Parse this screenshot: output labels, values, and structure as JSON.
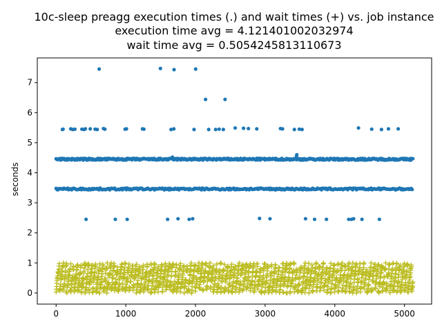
{
  "chart_data": {
    "type": "scatter",
    "title_lines": [
      "10c-sleep preagg execution times (.) and wait times (+) vs. job instance",
      "execution time avg = 4.121401002032974",
      "wait time avg = 0.5054245813110673"
    ],
    "xlabel": "",
    "ylabel": "seconds",
    "xlim": [
      -270,
      5390
    ],
    "ylim": [
      -0.37,
      7.82
    ],
    "x_ticks": [
      0,
      1000,
      2000,
      3000,
      4000,
      5000
    ],
    "y_ticks": [
      0,
      1,
      2,
      3,
      4,
      5,
      6,
      7
    ],
    "grid": false,
    "legend": "none",
    "colors": {
      "execution": "#1f77b4",
      "wait": "#bcbd22"
    },
    "series": [
      {
        "marker": "dot",
        "x_range": [
          0,
          5120
        ],
        "bands": [
          {
            "y": 4.45,
            "spread": 0.03,
            "x_start": 0,
            "x_end": 5120,
            "step": 10
          },
          {
            "y": 3.46,
            "spread": 0.03,
            "x_start": 0,
            "x_end": 5120,
            "step": 14
          }
        ],
        "points": [
          [
            618,
            7.45
          ],
          [
            1497,
            7.47
          ],
          [
            1693,
            7.43
          ],
          [
            2003,
            7.45
          ],
          [
            2145,
            6.44
          ],
          [
            2425,
            6.44
          ],
          [
            90,
            5.44
          ],
          [
            100,
            5.45
          ],
          [
            210,
            5.46
          ],
          [
            240,
            5.44
          ],
          [
            270,
            5.45
          ],
          [
            370,
            5.45
          ],
          [
            400,
            5.44
          ],
          [
            420,
            5.46
          ],
          [
            490,
            5.46
          ],
          [
            560,
            5.45
          ],
          [
            590,
            5.44
          ],
          [
            680,
            5.47
          ],
          [
            700,
            5.45
          ],
          [
            990,
            5.45
          ],
          [
            1010,
            5.46
          ],
          [
            1240,
            5.46
          ],
          [
            1260,
            5.45
          ],
          [
            1650,
            5.44
          ],
          [
            1690,
            5.46
          ],
          [
            1980,
            5.44
          ],
          [
            2190,
            5.44
          ],
          [
            2290,
            5.44
          ],
          [
            2340,
            5.45
          ],
          [
            2400,
            5.44
          ],
          [
            2570,
            5.49
          ],
          [
            2690,
            5.48
          ],
          [
            2760,
            5.47
          ],
          [
            2880,
            5.46
          ],
          [
            3220,
            5.47
          ],
          [
            3250,
            5.46
          ],
          [
            3420,
            5.44
          ],
          [
            3490,
            5.45
          ],
          [
            3530,
            5.44
          ],
          [
            4340,
            5.49
          ],
          [
            4530,
            5.45
          ],
          [
            4670,
            5.44
          ],
          [
            4770,
            5.46
          ],
          [
            4910,
            5.46
          ],
          [
            3455,
            4.6
          ],
          [
            3450,
            4.55
          ],
          [
            1670,
            4.52
          ],
          [
            430,
            2.45
          ],
          [
            850,
            2.45
          ],
          [
            1020,
            2.45
          ],
          [
            1600,
            2.45
          ],
          [
            1750,
            2.47
          ],
          [
            1910,
            2.45
          ],
          [
            1960,
            2.47
          ],
          [
            2920,
            2.48
          ],
          [
            3070,
            2.47
          ],
          [
            3580,
            2.47
          ],
          [
            3710,
            2.45
          ],
          [
            3880,
            2.45
          ],
          [
            4200,
            2.45
          ],
          [
            4240,
            2.45
          ],
          [
            4270,
            2.47
          ],
          [
            4390,
            2.45
          ],
          [
            4640,
            2.45
          ]
        ]
      },
      {
        "marker": "plus",
        "x_range": [
          0,
          5120
        ],
        "y_range": [
          0,
          1.0
        ],
        "count": 5120,
        "mean": 0.505,
        "pattern": "sawtooth"
      }
    ]
  }
}
